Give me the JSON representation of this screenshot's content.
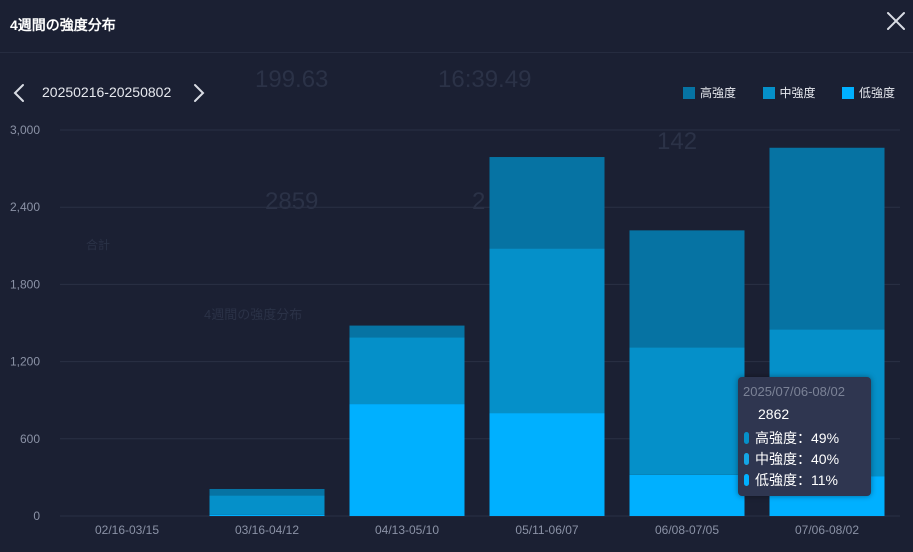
{
  "header": {
    "title": "4週間の強度分布"
  },
  "nav": {
    "range": "20250216-20250802"
  },
  "colors": {
    "high": "#0673a3",
    "mid": "#0590c9",
    "low": "#00b0ff",
    "grid": "#2a3045",
    "axis_text": "#8b92a6",
    "background": "#1b2033"
  },
  "icons": {
    "close": "close-icon",
    "prev": "chevron-left-icon",
    "next": "chevron-right-icon"
  },
  "background_text": {
    "stat1": "199.63",
    "stat2": "16:39.49",
    "stat3": "142",
    "stat4": "2859",
    "stat5": "2",
    "label1": "合計",
    "subtitle": "4週間の強度分布"
  },
  "chart_data": {
    "type": "bar",
    "stacked": true,
    "categories": [
      "02/16-03/15",
      "03/16-04/12",
      "04/13-05/10",
      "05/11-06/07",
      "06/08-07/05",
      "07/06-08/02"
    ],
    "series": [
      {
        "name": "低強度",
        "values": [
          0,
          10,
          870,
          800,
          320,
          310
        ]
      },
      {
        "name": "中強度",
        "values": [
          0,
          150,
          520,
          1280,
          990,
          1140
        ]
      },
      {
        "name": "高強度",
        "values": [
          0,
          50,
          90,
          710,
          910,
          1412
        ]
      }
    ],
    "yticks": [
      0,
      600,
      1200,
      1800,
      2400,
      3000
    ],
    "ytick_labels": [
      "0",
      "600",
      "1,200",
      "1,800",
      "2,400",
      "3,000"
    ],
    "ylim": [
      0,
      3000
    ],
    "grid": true,
    "legend": "top-right",
    "tooltip": {
      "range": "2025/07/06-08/02",
      "total": "2862",
      "rows": [
        {
          "label": "高強度：49%"
        },
        {
          "label": "中強度：40%"
        },
        {
          "label": "低強度：11%"
        }
      ]
    }
  }
}
